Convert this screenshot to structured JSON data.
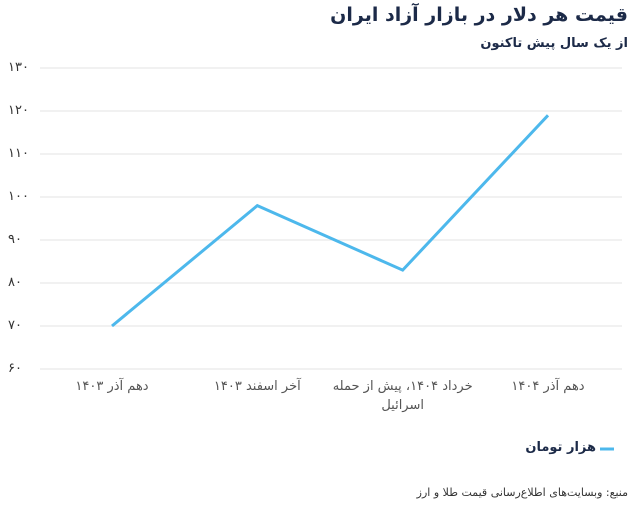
{
  "chart_data": {
    "type": "line",
    "title": "قیمت هر دلار در بازار آزاد ایران",
    "subtitle": "از یک سال پیش تاکنون",
    "categories": [
      "دهم آذر ۱۴۰۳",
      "آخر اسفند ۱۴۰۳",
      "خرداد ۱۴۰۴، پیش از حمله اسرائیل",
      "دهم آذر ۱۴۰۴"
    ],
    "series": [
      {
        "name": "هزار تومان",
        "color": "#4db8ec",
        "values": [
          70,
          98,
          83,
          119
        ]
      }
    ],
    "ylim": [
      60,
      130
    ],
    "yticks": [
      {
        "value": 60,
        "label": "۶۰"
      },
      {
        "value": 70,
        "label": "۷۰"
      },
      {
        "value": 80,
        "label": "۸۰"
      },
      {
        "value": 90,
        "label": "۹۰"
      },
      {
        "value": 100,
        "label": "۱۰۰"
      },
      {
        "value": 110,
        "label": "۱۱۰"
      },
      {
        "value": 120,
        "label": "۱۲۰"
      },
      {
        "value": 130,
        "label": "۱۳۰"
      }
    ],
    "grid": true,
    "source": "منبع: وبسایت‌های اطلاع‌رسانی قیمت طلا و ارز"
  }
}
